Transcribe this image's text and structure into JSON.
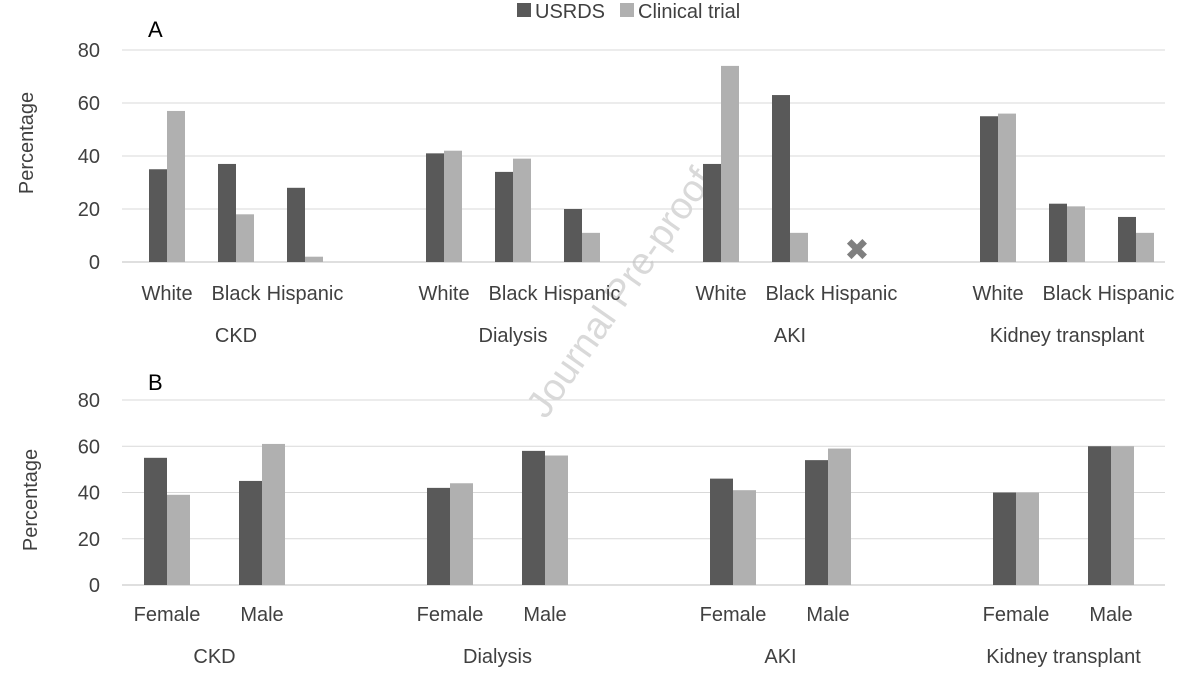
{
  "legend": {
    "series": [
      {
        "name": "USRDS",
        "color": "#595959"
      },
      {
        "name": "Clinical trial",
        "color": "#b0b0b0"
      }
    ]
  },
  "watermark": "Journal Pre-proof",
  "missing_marker": "✖",
  "chart_data": [
    {
      "type": "bar",
      "panel": "A",
      "ylabel": "Percentage",
      "ylim": [
        0,
        80
      ],
      "yticks": [
        0,
        20,
        40,
        60,
        80
      ],
      "grid": true,
      "groups": [
        {
          "name": "CKD",
          "categories": [
            "White",
            "Black",
            "Hispanic"
          ],
          "series": [
            {
              "name": "USRDS",
              "values": [
                35,
                37,
                28
              ]
            },
            {
              "name": "Clinical trial",
              "values": [
                57,
                18,
                2
              ]
            }
          ]
        },
        {
          "name": "Dialysis",
          "categories": [
            "White",
            "Black",
            "Hispanic"
          ],
          "series": [
            {
              "name": "USRDS",
              "values": [
                41,
                34,
                20
              ]
            },
            {
              "name": "Clinical trial",
              "values": [
                42,
                39,
                11
              ]
            }
          ]
        },
        {
          "name": "AKI",
          "categories": [
            "White",
            "Black",
            "Hispanic"
          ],
          "series": [
            {
              "name": "USRDS",
              "values": [
                37,
                63,
                null
              ]
            },
            {
              "name": "Clinical trial",
              "values": [
                74,
                11,
                null
              ]
            }
          ]
        },
        {
          "name": "Kidney transplant",
          "categories": [
            "White",
            "Black",
            "Hispanic"
          ],
          "series": [
            {
              "name": "USRDS",
              "values": [
                55,
                22,
                17
              ]
            },
            {
              "name": "Clinical trial",
              "values": [
                56,
                21,
                11
              ]
            }
          ]
        }
      ]
    },
    {
      "type": "bar",
      "panel": "B",
      "ylabel": "Percentage",
      "ylim": [
        0,
        80
      ],
      "yticks": [
        0,
        20,
        40,
        60,
        80
      ],
      "grid": true,
      "groups": [
        {
          "name": "CKD",
          "categories": [
            "Female",
            "Male"
          ],
          "series": [
            {
              "name": "USRDS",
              "values": [
                55,
                45
              ]
            },
            {
              "name": "Clinical trial",
              "values": [
                39,
                61
              ]
            }
          ]
        },
        {
          "name": "Dialysis",
          "categories": [
            "Female",
            "Male"
          ],
          "series": [
            {
              "name": "USRDS",
              "values": [
                42,
                58
              ]
            },
            {
              "name": "Clinical trial",
              "values": [
                44,
                56
              ]
            }
          ]
        },
        {
          "name": "AKI",
          "categories": [
            "Female",
            "Male"
          ],
          "series": [
            {
              "name": "USRDS",
              "values": [
                46,
                54
              ]
            },
            {
              "name": "Clinical trial",
              "values": [
                41,
                59
              ]
            }
          ]
        },
        {
          "name": "Kidney transplant",
          "categories": [
            "Female",
            "Male"
          ],
          "series": [
            {
              "name": "USRDS",
              "values": [
                40,
                60
              ]
            },
            {
              "name": "Clinical trial",
              "values": [
                40,
                60
              ]
            }
          ]
        }
      ]
    }
  ]
}
